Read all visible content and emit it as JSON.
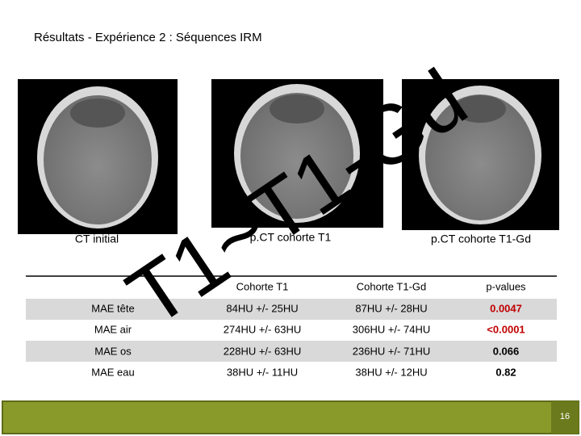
{
  "header": {
    "title": "Résultats - Expérience 2 : Séquences IRM"
  },
  "images": [
    {
      "caption": "CT initial"
    },
    {
      "caption": "p.CT cohorte T1"
    },
    {
      "caption": "p.CT cohorte T1-Gd"
    }
  ],
  "overlay": "T1~T1-Gd",
  "table": {
    "header": [
      "",
      "Cohorte T1",
      "Cohorte T1-Gd",
      "p-values"
    ],
    "rows": [
      [
        "MAE tête",
        "84HU +/- 25HU",
        "87HU +/- 28HU",
        "0.0047"
      ],
      [
        "MAE air",
        "274HU +/- 63HU",
        "306HU +/- 74HU",
        "<0.0001"
      ],
      [
        "MAE os",
        "228HU +/- 63HU",
        "236HU +/- 71HU",
        "0.066"
      ],
      [
        "MAE eau",
        "38HU +/- 11HU",
        "38HU +/- 12HU",
        "0.82"
      ]
    ],
    "highlight": {
      "color": "#c00000",
      "column": 3,
      "rows": [
        0,
        1
      ]
    }
  },
  "footer": {
    "page_number": "16"
  }
}
